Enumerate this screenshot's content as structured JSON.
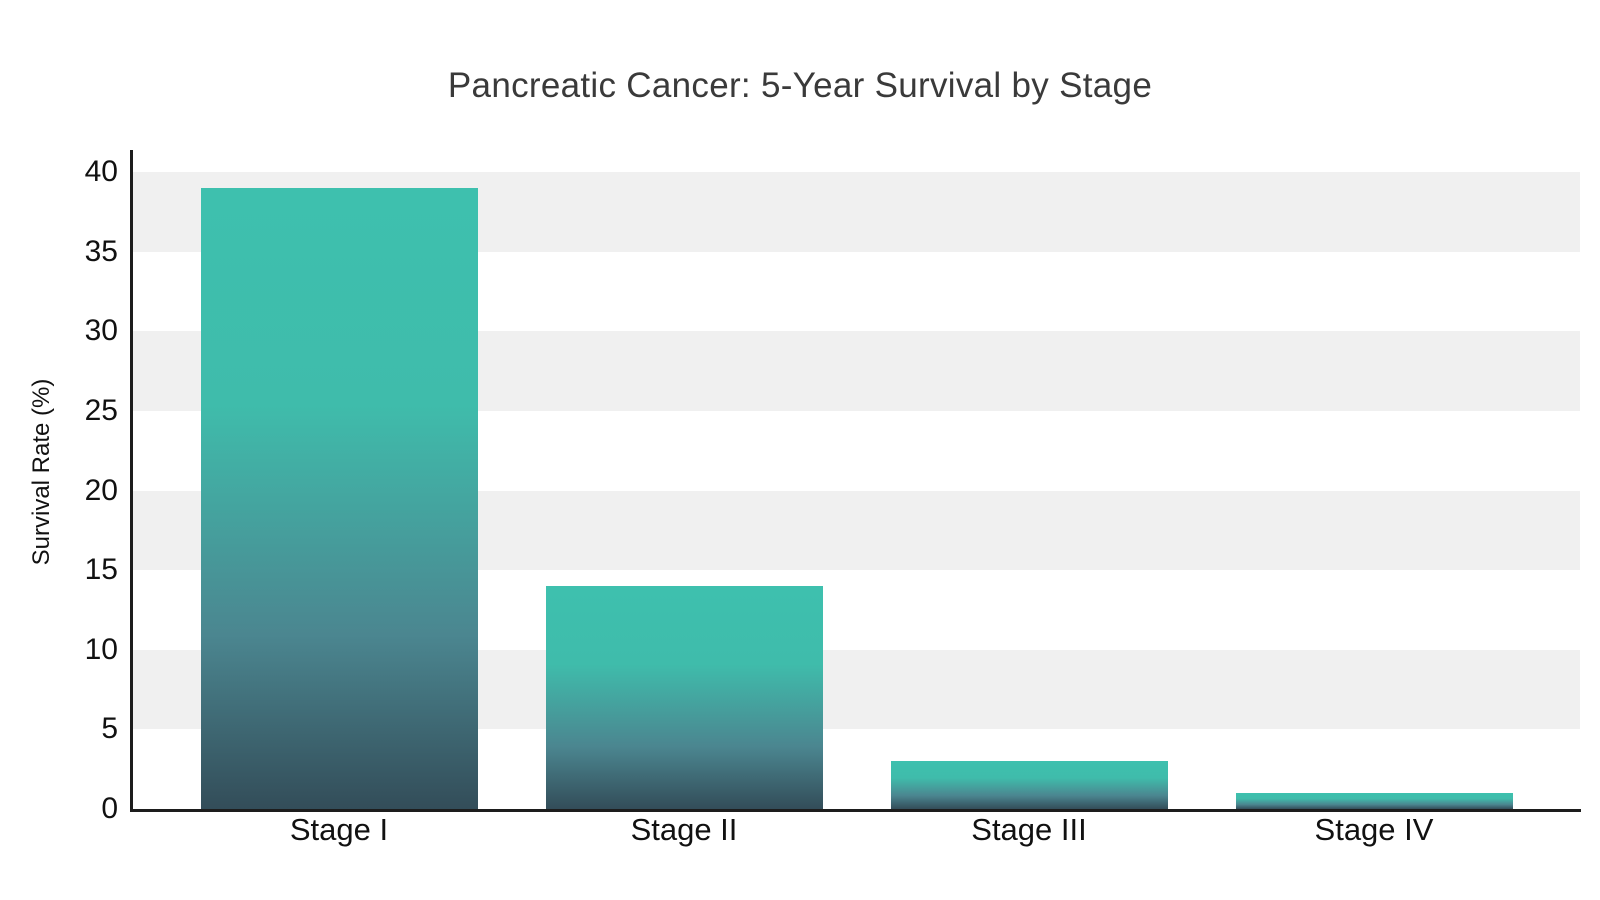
{
  "chart_data": {
    "type": "bar",
    "title": "Pancreatic Cancer: 5-Year Survival by Stage",
    "categories": [
      "Stage I",
      "Stage II",
      "Stage III",
      "Stage IV"
    ],
    "values": [
      39,
      14,
      3,
      1
    ],
    "xlabel": "",
    "ylabel": "Survival Rate (%)",
    "ylim": [
      0,
      40
    ],
    "yticks": [
      0,
      5,
      10,
      15,
      20,
      25,
      30,
      35,
      40
    ],
    "legend": "none",
    "grid": "horizontal striped bands",
    "stripe_bands": [
      [
        5,
        10
      ],
      [
        15,
        20
      ],
      [
        25,
        30
      ],
      [
        35,
        40
      ]
    ],
    "colors": {
      "band": "#f0f0f0",
      "bar_top": "#3ec0ae",
      "bar_mid": "#3fbcab",
      "bar_low": "#4b8690",
      "bar_bottom": "#334d59",
      "axis": "#1d1d1d",
      "tick_text": "#111111",
      "title_text": "#3a3a3a",
      "background": "#ffffff"
    }
  }
}
